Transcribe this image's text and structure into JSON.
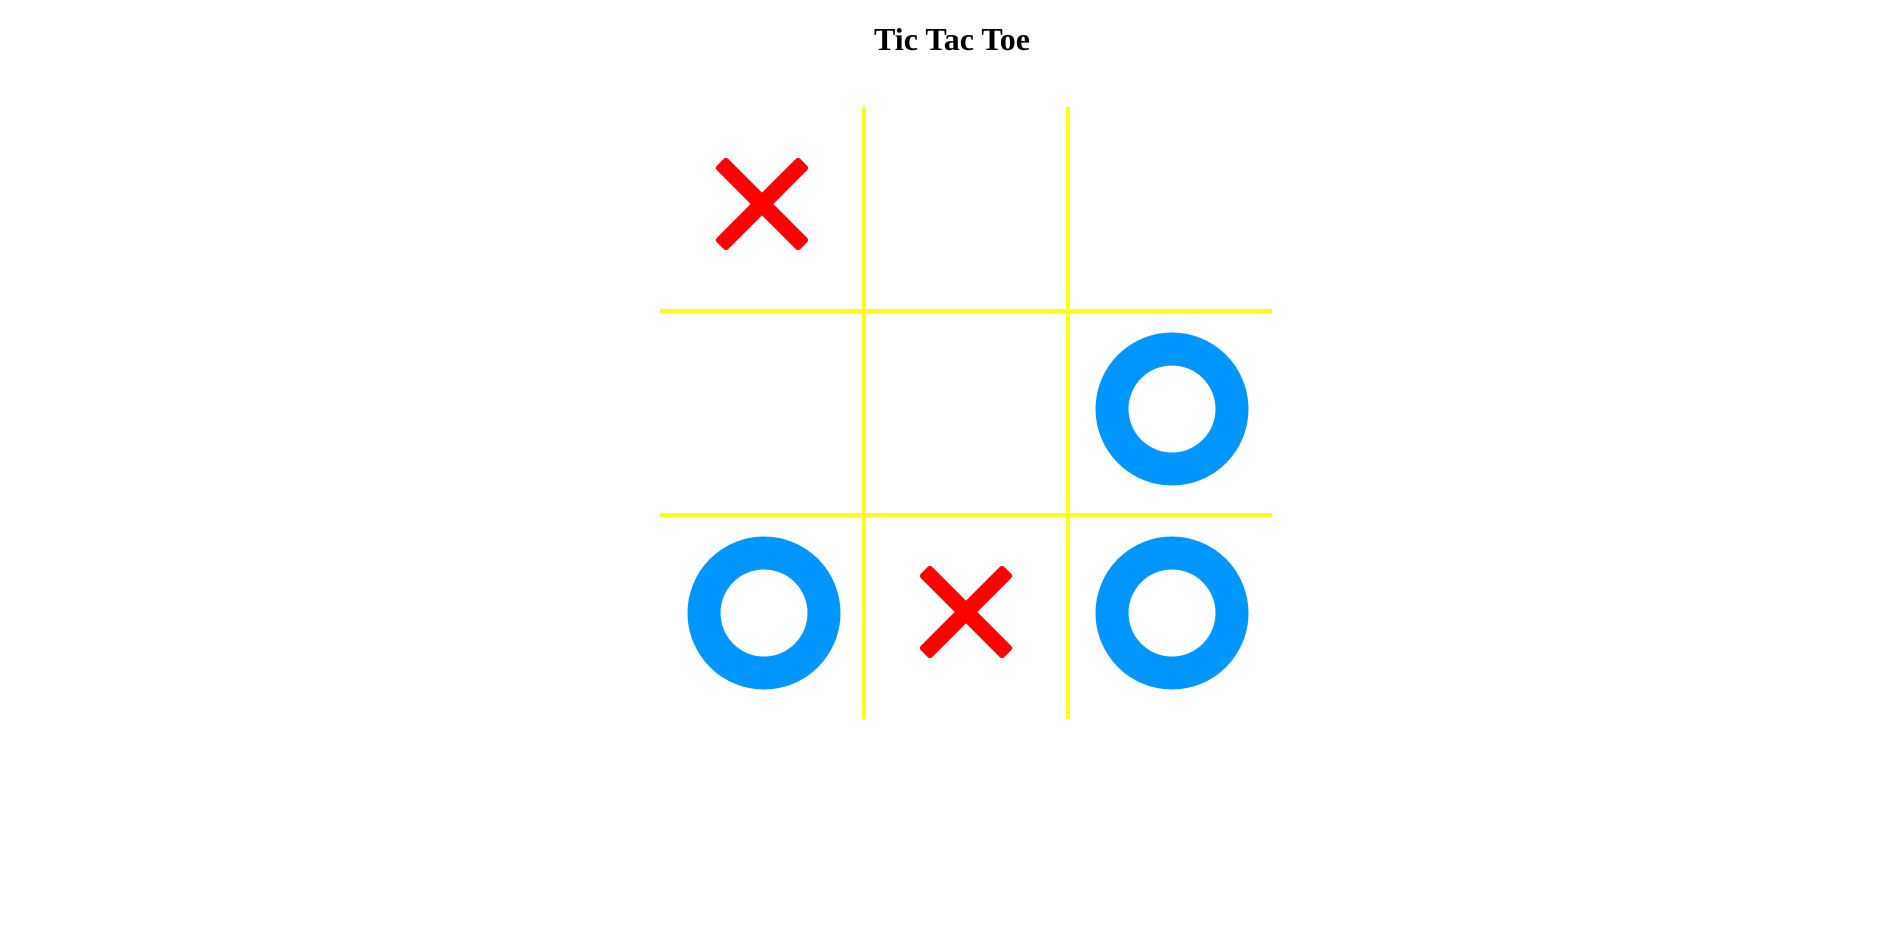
{
  "title": "Tic Tac Toe",
  "board": {
    "cells": [
      "X",
      "",
      "",
      "",
      "",
      "O",
      "O",
      "X",
      "O"
    ]
  },
  "colors": {
    "grid": "#ffff1a",
    "x_mark": "#ff0000",
    "o_mark": "#0096ff",
    "background": "#ffffff",
    "title": "#000000"
  }
}
